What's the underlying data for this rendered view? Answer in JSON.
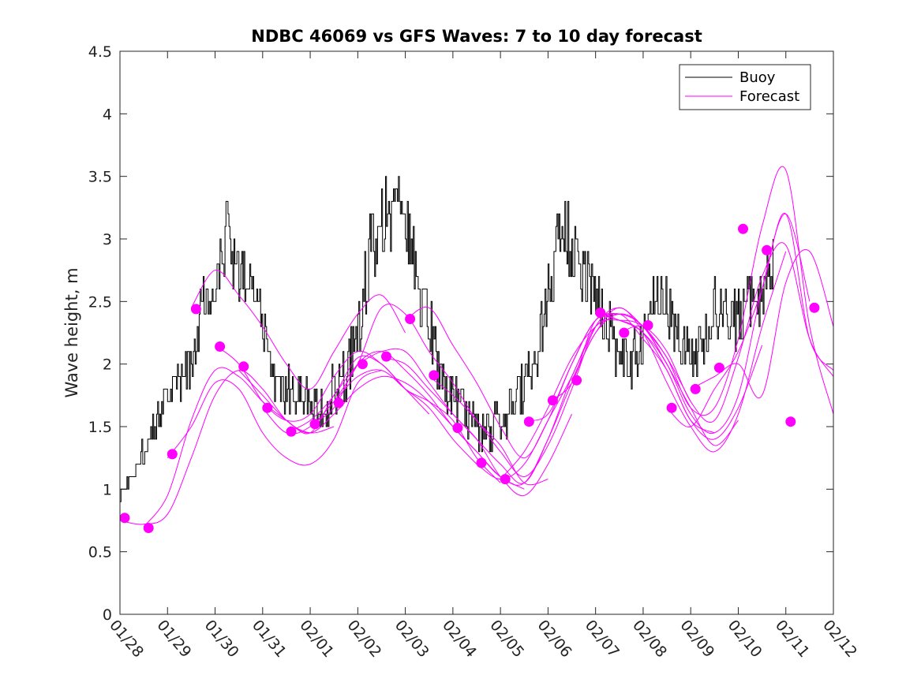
{
  "chart_data": {
    "type": "line",
    "title": "NDBC 46069 vs GFS Waves: 7 to 10 day forecast",
    "xlabel": "",
    "ylabel": "Wave height, m",
    "xlim": [
      0,
      15
    ],
    "ylim": [
      0,
      4.5
    ],
    "yticks": [
      0,
      0.5,
      1,
      1.5,
      2,
      2.5,
      3,
      3.5,
      4,
      4.5
    ],
    "ytick_labels": [
      "0",
      "0.5",
      "1",
      "1.5",
      "2",
      "2.5",
      "3",
      "3.5",
      "4",
      "4.5"
    ],
    "xtick_labels": [
      "01/28",
      "01/29",
      "01/30",
      "01/31",
      "02/01",
      "02/02",
      "02/03",
      "02/04",
      "02/05",
      "02/06",
      "02/07",
      "02/08",
      "02/09",
      "02/10",
      "02/11",
      "02/12"
    ],
    "colors": {
      "buoy": "#000000",
      "forecast": "#ff00ff"
    },
    "legend": {
      "position": "top-right",
      "entries": [
        {
          "label": "Buoy",
          "series": "buoy"
        },
        {
          "label": "Forecast",
          "series": "forecast"
        }
      ]
    },
    "buoy_anchors": {
      "x": [
        0.0,
        0.25,
        0.5,
        0.75,
        1.0,
        1.25,
        1.5,
        1.75,
        2.0,
        2.25,
        2.5,
        2.75,
        3.0,
        3.25,
        3.5,
        3.75,
        4.0,
        4.25,
        4.5,
        4.75,
        5.0,
        5.25,
        5.5,
        5.75,
        6.0,
        6.25,
        6.5,
        6.75,
        7.0,
        7.25,
        7.5,
        7.75,
        8.0,
        8.25,
        8.5,
        8.75,
        9.0,
        9.25,
        9.5,
        9.75,
        10.0,
        10.25,
        10.5,
        10.75,
        11.0,
        11.25,
        11.5,
        11.75,
        12.0,
        12.25,
        12.5,
        12.75,
        13.0,
        13.25,
        13.5,
        13.75,
        14.0,
        14.25,
        14.5,
        14.75
      ],
      "y": [
        0.95,
        1.1,
        1.3,
        1.5,
        1.75,
        1.85,
        2.0,
        2.5,
        2.75,
        3.05,
        2.7,
        2.6,
        2.3,
        1.9,
        1.8,
        1.75,
        1.7,
        1.65,
        1.8,
        1.9,
        2.3,
        2.9,
        3.2,
        3.3,
        3.1,
        2.7,
        2.3,
        1.9,
        1.7,
        1.65,
        1.5,
        1.45,
        1.55,
        1.7,
        1.8,
        2.0,
        2.6,
        3.1,
        3.0,
        2.7,
        2.5,
        2.3,
        2.1,
        2.0,
        2.2,
        2.6,
        2.5,
        2.2,
        2.0,
        2.2,
        2.5,
        2.4,
        2.35,
        2.5,
        2.6,
        2.9,
        null,
        null,
        null,
        null
      ],
      "noise": [
        0.05,
        0.08,
        0.1,
        0.12,
        0.15,
        0.18,
        0.2,
        0.25,
        0.28,
        0.3,
        0.28,
        0.25,
        0.22,
        0.2,
        0.18,
        0.18,
        0.18,
        0.18,
        0.2,
        0.25,
        0.28,
        0.3,
        0.32,
        0.35,
        0.32,
        0.3,
        0.25,
        0.2,
        0.18,
        0.18,
        0.18,
        0.18,
        0.2,
        0.22,
        0.25,
        0.28,
        0.3,
        0.32,
        0.3,
        0.28,
        0.25,
        0.22,
        0.22,
        0.22,
        0.25,
        0.25,
        0.25,
        0.22,
        0.22,
        0.25,
        0.25,
        0.25,
        0.25,
        0.25,
        0.28,
        0.3,
        null,
        null,
        null,
        null
      ]
    },
    "forecast_runs": [
      {
        "name": "run-1",
        "x": [
          0.0,
          0.5,
          1.0,
          1.5,
          2.0,
          2.5,
          3.0,
          3.5,
          4.0,
          4.5
        ],
        "y": [
          0.75,
          0.72,
          0.8,
          1.25,
          1.75,
          1.95,
          1.8,
          1.55,
          1.45,
          1.5
        ]
      },
      {
        "name": "run-2",
        "x": [
          0.5,
          1.0,
          1.5,
          2.0,
          2.5,
          3.0,
          3.5,
          4.0,
          4.5,
          5.0
        ],
        "y": [
          0.7,
          0.95,
          1.55,
          1.95,
          1.9,
          1.7,
          1.55,
          1.45,
          1.75,
          2.0
        ]
      },
      {
        "name": "run-3",
        "x": [
          1.0,
          1.5,
          2.0,
          2.5,
          3.0,
          3.5,
          4.0,
          4.5,
          5.0,
          5.5
        ],
        "y": [
          1.25,
          1.5,
          1.85,
          1.8,
          1.45,
          1.25,
          1.2,
          1.4,
          1.85,
          1.95
        ]
      },
      {
        "name": "run-4",
        "x": [
          1.5,
          2.0,
          2.5,
          3.0,
          3.5,
          4.0,
          4.5,
          5.0,
          5.5,
          6.0
        ],
        "y": [
          2.45,
          2.75,
          2.55,
          2.3,
          2.0,
          1.8,
          2.1,
          2.4,
          2.55,
          2.25
        ]
      },
      {
        "name": "run-5",
        "x": [
          2.0,
          2.5,
          3.0,
          3.5,
          4.0,
          4.5,
          5.0,
          5.5,
          6.0,
          6.5
        ],
        "y": [
          2.15,
          2.0,
          1.7,
          1.55,
          1.6,
          1.9,
          2.1,
          2.0,
          1.8,
          1.6
        ]
      },
      {
        "name": "run-6",
        "x": [
          2.5,
          3.0,
          3.5,
          4.0,
          4.5,
          5.0,
          5.5,
          6.0,
          6.5,
          7.0
        ],
        "y": [
          1.95,
          1.75,
          1.55,
          1.45,
          1.6,
          1.8,
          1.9,
          1.85,
          1.7,
          1.5
        ]
      },
      {
        "name": "run-7",
        "x": [
          3.0,
          3.5,
          4.0,
          4.5,
          5.0,
          5.5,
          6.0,
          6.5,
          7.0,
          7.5
        ],
        "y": [
          1.65,
          1.45,
          1.5,
          1.7,
          1.9,
          1.95,
          1.8,
          1.65,
          1.4,
          1.2
        ]
      },
      {
        "name": "run-8",
        "x": [
          3.5,
          4.0,
          4.5,
          5.0,
          5.5,
          6.0,
          6.5,
          7.0,
          7.5,
          8.0
        ],
        "y": [
          1.45,
          1.55,
          1.75,
          2.05,
          2.0,
          1.8,
          1.7,
          1.55,
          1.25,
          1.05
        ]
      },
      {
        "name": "run-9",
        "x": [
          4.0,
          4.5,
          5.0,
          5.5,
          6.0,
          6.5,
          7.0,
          7.5,
          8.0,
          8.5
        ],
        "y": [
          1.52,
          1.65,
          2.0,
          2.1,
          1.95,
          1.75,
          1.5,
          1.3,
          1.1,
          1.0
        ]
      },
      {
        "name": "run-10",
        "x": [
          4.5,
          5.0,
          5.5,
          6.0,
          6.5,
          7.0,
          7.5,
          8.0,
          8.5,
          9.0
        ],
        "y": [
          1.7,
          2.0,
          2.45,
          2.4,
          2.1,
          1.85,
          1.55,
          1.35,
          1.05,
          1.08
        ]
      },
      {
        "name": "run-11",
        "x": [
          5.0,
          5.5,
          6.0,
          6.5,
          7.0,
          7.5,
          8.0,
          8.5,
          9.0,
          9.5
        ],
        "y": [
          2.0,
          2.1,
          2.1,
          1.85,
          1.6,
          1.4,
          1.1,
          0.95,
          1.2,
          1.6
        ]
      },
      {
        "name": "run-12",
        "x": [
          5.5,
          6.0,
          6.5,
          7.0,
          7.5,
          8.0,
          8.5,
          9.0,
          9.5,
          10.0
        ],
        "y": [
          2.05,
          2.0,
          1.8,
          1.6,
          1.4,
          1.2,
          1.05,
          1.4,
          1.9,
          2.3
        ]
      },
      {
        "name": "run-13",
        "x": [
          6.0,
          6.5,
          7.0,
          7.5,
          8.0,
          8.5,
          9.0,
          9.5,
          10.0,
          10.5
        ],
        "y": [
          2.35,
          2.45,
          2.15,
          1.85,
          1.5,
          1.25,
          1.55,
          2.0,
          2.35,
          2.4
        ]
      },
      {
        "name": "run-14",
        "x": [
          6.5,
          7.0,
          7.5,
          8.0,
          8.5,
          9.0,
          9.5,
          10.0,
          10.5,
          11.0
        ],
        "y": [
          1.9,
          1.75,
          1.55,
          1.3,
          1.1,
          1.35,
          1.8,
          2.3,
          2.45,
          2.3
        ]
      },
      {
        "name": "run-15",
        "x": [
          7.0,
          7.5,
          8.0,
          8.5,
          9.0,
          9.5,
          10.0,
          10.5,
          11.0,
          11.5
        ],
        "y": [
          1.5,
          1.3,
          1.1,
          1.05,
          1.4,
          1.85,
          2.25,
          2.4,
          2.3,
          2.0
        ]
      },
      {
        "name": "run-16",
        "x": [
          7.5,
          8.0,
          8.5,
          9.0,
          9.5,
          10.0,
          10.5,
          11.0,
          11.5,
          12.0
        ],
        "y": [
          1.2,
          1.08,
          1.2,
          1.55,
          1.9,
          2.3,
          2.35,
          2.3,
          2.05,
          1.7
        ]
      },
      {
        "name": "run-17",
        "x": [
          8.0,
          8.5,
          9.0,
          9.5,
          10.0,
          10.5,
          11.0,
          11.5,
          12.0,
          12.5
        ],
        "y": [
          1.08,
          1.3,
          1.65,
          2.05,
          2.3,
          2.4,
          2.2,
          1.95,
          1.55,
          1.45
        ]
      },
      {
        "name": "run-18",
        "x": [
          8.5,
          9.0,
          9.5,
          10.0,
          10.5,
          11.0,
          11.5,
          12.0,
          12.5,
          13.0
        ],
        "y": [
          1.55,
          1.6,
          2.0,
          2.35,
          2.4,
          2.3,
          2.0,
          1.65,
          1.35,
          1.55
        ]
      },
      {
        "name": "run-19",
        "x": [
          9.0,
          9.5,
          10.0,
          10.5,
          11.0,
          11.5,
          12.0,
          12.5,
          13.0,
          13.5
        ],
        "y": [
          1.7,
          1.85,
          2.35,
          2.35,
          2.25,
          1.95,
          1.55,
          1.4,
          1.65,
          2.15
        ]
      },
      {
        "name": "run-20",
        "x": [
          9.5,
          10.0,
          10.5,
          11.0,
          11.5,
          12.0,
          12.5,
          13.0,
          13.5,
          14.0
        ],
        "y": [
          1.87,
          2.25,
          2.45,
          2.25,
          1.85,
          1.5,
          1.3,
          1.6,
          2.3,
          2.9
        ]
      },
      {
        "name": "run-21",
        "x": [
          10.0,
          10.5,
          11.0,
          11.5,
          12.0,
          12.5,
          13.0,
          13.5,
          14.0,
          14.5
        ],
        "y": [
          2.4,
          2.35,
          2.25,
          2.0,
          1.6,
          1.45,
          1.75,
          2.6,
          3.2,
          2.5
        ]
      },
      {
        "name": "run-22",
        "x": [
          10.5,
          11.0,
          11.5,
          12.0,
          12.5,
          13.0,
          13.5,
          14.0,
          14.5,
          15.0
        ],
        "y": [
          2.25,
          2.3,
          2.1,
          1.7,
          1.55,
          2.05,
          2.7,
          2.95,
          2.2,
          1.9
        ]
      },
      {
        "name": "run-23",
        "x": [
          11.0,
          11.5,
          12.0,
          12.5,
          13.0,
          13.5,
          14.0,
          14.5,
          15.0
        ],
        "y": [
          2.3,
          2.05,
          1.65,
          1.65,
          2.2,
          3.1,
          3.55,
          2.3,
          1.6
        ]
      },
      {
        "name": "run-24",
        "x": [
          11.5,
          12.0,
          12.5,
          13.0,
          13.5,
          14.0,
          14.5,
          15.0
        ],
        "y": [
          1.65,
          1.5,
          1.8,
          2.1,
          2.6,
          3.2,
          2.2,
          1.95
        ]
      },
      {
        "name": "run-25",
        "x": [
          12.0,
          12.5,
          13.0,
          13.5,
          14.0,
          14.5,
          15.0
        ],
        "y": [
          1.8,
          1.9,
          2.0,
          1.75,
          2.65,
          2.9,
          2.3
        ]
      }
    ],
    "forecast_markers": {
      "x": [
        0.1,
        0.6,
        1.1,
        1.6,
        2.1,
        2.6,
        3.1,
        3.6,
        4.1,
        4.6,
        5.1,
        5.6,
        6.1,
        6.6,
        7.1,
        7.6,
        8.1,
        8.6,
        9.1,
        9.6,
        10.1,
        10.6,
        11.1,
        11.6,
        12.1,
        12.6,
        13.1,
        13.6,
        14.1,
        14.6
      ],
      "y": [
        0.77,
        0.69,
        1.28,
        2.44,
        2.14,
        1.98,
        1.65,
        1.46,
        1.52,
        1.69,
        2.0,
        2.06,
        2.36,
        1.91,
        1.49,
        1.21,
        1.08,
        1.54,
        1.71,
        1.87,
        2.41,
        2.25,
        2.31,
        1.65,
        1.8,
        1.97,
        3.08,
        2.91,
        1.54,
        2.45
      ]
    }
  }
}
